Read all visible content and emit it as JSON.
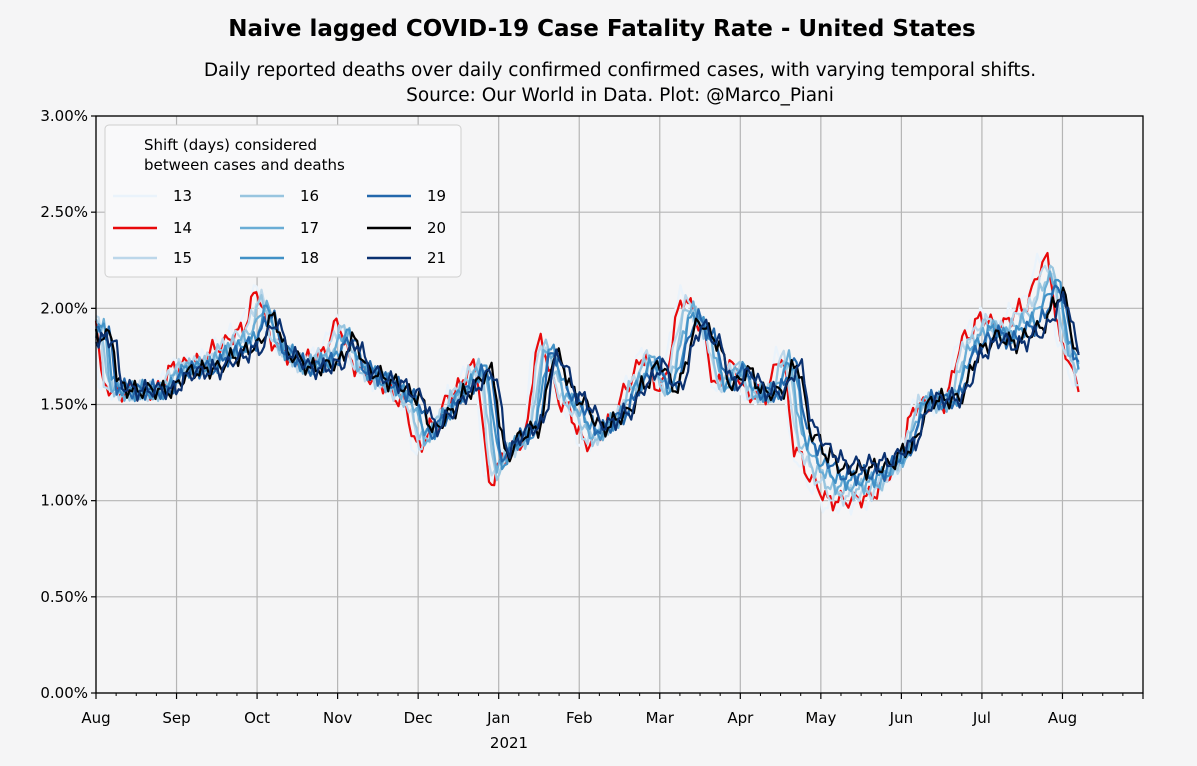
{
  "chart_data": {
    "type": "line",
    "title": "Naive lagged COVID-19 Case Fatality Rate - United States",
    "subtitle_lines": [
      "Daily reported deaths over daily confirmed confirmed cases, with varying temporal shifts.",
      "Source: Our World in Data. Plot: @Marco_Piani"
    ],
    "xlabel": "",
    "ylabel": "",
    "ylim": [
      0,
      3.0
    ],
    "y_ticks": [
      0,
      0.5,
      1.0,
      1.5,
      2.0,
      2.5,
      3.0
    ],
    "y_tick_labels": [
      "0.00%",
      "0.50%",
      "1.00%",
      "1.50%",
      "2.00%",
      "2.50%",
      "3.00%"
    ],
    "x_domain_months": [
      0,
      13
    ],
    "x_ticks": [
      0,
      1,
      2,
      3,
      4,
      5,
      6,
      7,
      8,
      9,
      10,
      11,
      12
    ],
    "x_tick_labels": [
      "Aug",
      "Sep",
      "Oct",
      "Nov",
      "Dec",
      "Jan",
      "Feb",
      "Mar",
      "Apr",
      "May",
      "Jun",
      "Jul",
      "Aug"
    ],
    "x_year_label": "2021",
    "grid": true,
    "legend": {
      "title_lines": [
        "Shift (days) considered",
        "between cases and deaths"
      ],
      "placement": "top-left",
      "columns": 3
    },
    "series": [
      {
        "name": "13",
        "color": "#eaf3fb",
        "shift": 13
      },
      {
        "name": "14",
        "color": "#e8090a",
        "shift": 14
      },
      {
        "name": "15",
        "color": "#bcd7ea",
        "shift": 15
      },
      {
        "name": "16",
        "color": "#98c5df",
        "shift": 16
      },
      {
        "name": "17",
        "color": "#6aadd5",
        "shift": 17
      },
      {
        "name": "18",
        "color": "#4191c6",
        "shift": 18
      },
      {
        "name": "19",
        "color": "#2368ac",
        "shift": 19
      },
      {
        "name": "20",
        "color": "#000000",
        "shift": 20
      },
      {
        "name": "21",
        "color": "#0b3170",
        "shift": 21
      }
    ],
    "base_curve_x_months": [
      0,
      0.08,
      0.3,
      0.5,
      0.7,
      1.0,
      1.3,
      1.5,
      1.8,
      2.0,
      2.2,
      2.5,
      2.8,
      3.0,
      3.2,
      3.5,
      3.8,
      4.0,
      4.2,
      4.4,
      4.7,
      4.9,
      5.1,
      5.3,
      5.5,
      5.8,
      6.1,
      6.4,
      6.6,
      6.8,
      7.0,
      7.3,
      7.5,
      7.7,
      7.9,
      8.1,
      8.3,
      8.5,
      8.7,
      8.9,
      9.1,
      9.3,
      9.6,
      9.9,
      10.2,
      10.5,
      10.8,
      11.0,
      11.2,
      11.5,
      11.8,
      12.0,
      12.2
    ],
    "base_curve_cfr_percent": [
      1.95,
      1.6,
      1.56,
      1.57,
      1.56,
      1.7,
      1.72,
      1.8,
      1.88,
      2.08,
      1.82,
      1.72,
      1.76,
      1.92,
      1.7,
      1.62,
      1.52,
      1.28,
      1.4,
      1.55,
      1.7,
      1.1,
      1.25,
      1.3,
      1.82,
      1.5,
      1.3,
      1.4,
      1.6,
      1.75,
      1.58,
      2.05,
      1.92,
      1.6,
      1.7,
      1.55,
      1.55,
      1.75,
      1.25,
      1.1,
      1.0,
      1.0,
      1.02,
      1.15,
      1.5,
      1.5,
      1.85,
      1.95,
      1.9,
      2.0,
      2.25,
      1.8,
      1.6
    ]
  }
}
